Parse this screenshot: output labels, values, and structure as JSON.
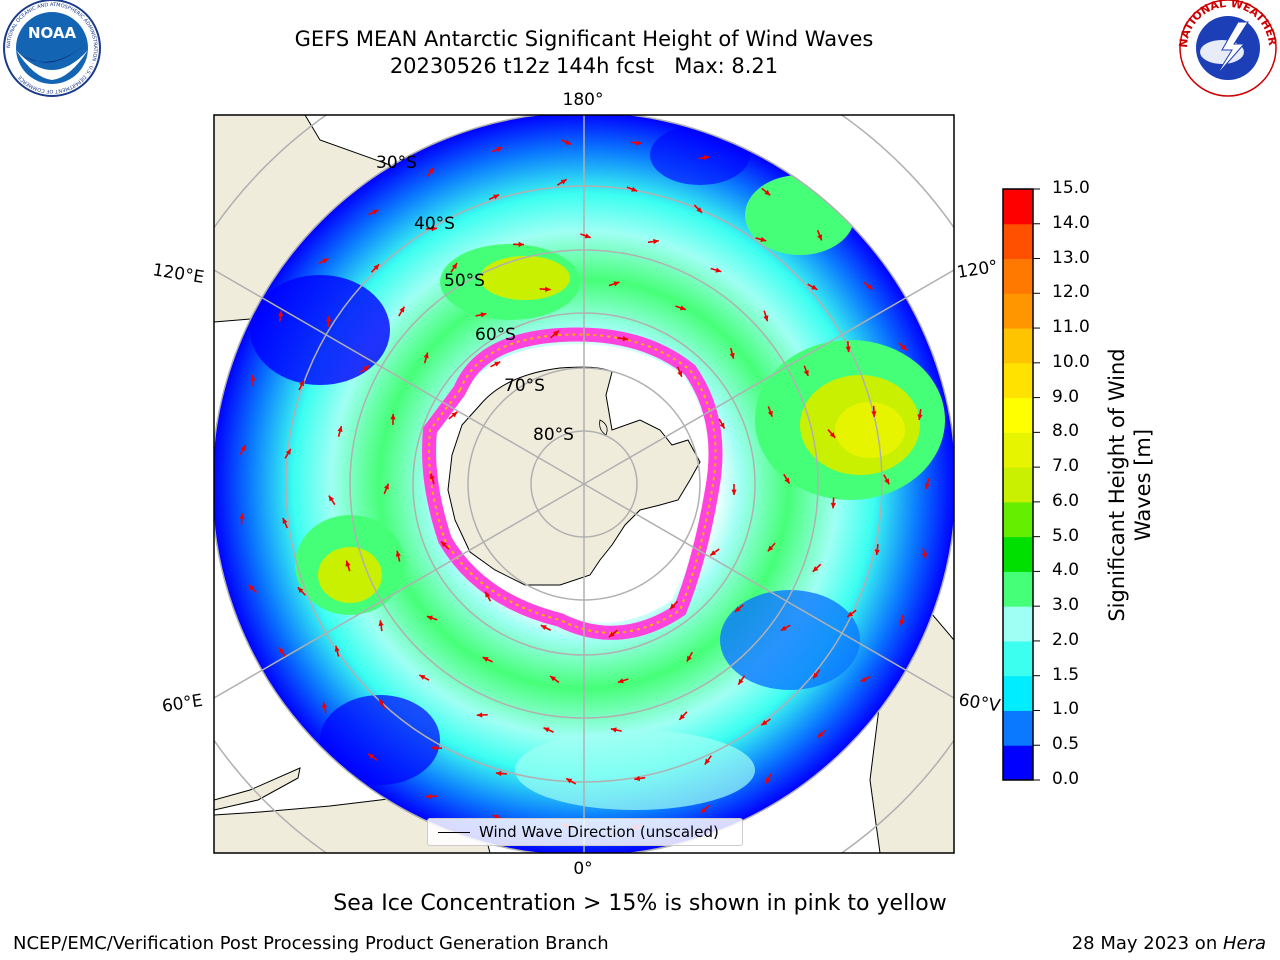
{
  "title": {
    "line1": "GEFS MEAN Antarctic Significant Height of Wind Waves",
    "line2": "20230526 t12z 144h fcst   Max: 8.21"
  },
  "logos": {
    "left": "NOAA",
    "left_ring": "NATIONAL OCEANIC AND ATMOSPHERIC ADMINISTRATION · U.S. DEPARTMENT OF COMMERCE",
    "right_ring": "NATIONAL WEATHER SERVICE"
  },
  "map": {
    "lon_labels": {
      "top": "180°",
      "bottom": "0°",
      "upper_left": "120°E",
      "lower_left": "60°E",
      "upper_right": "120°",
      "lower_right": "60°V"
    },
    "lat_labels": [
      "30°S",
      "40°S",
      "50°S",
      "60°S",
      "70°S",
      "80°S"
    ],
    "legend_label": "Wind Wave Direction (unscaled)",
    "colors": {
      "land": "#efecdc",
      "grid": "#b0b0b0",
      "arrow": "#ee0000",
      "sea_ice": "#ff44dd"
    }
  },
  "colorbar": {
    "label_line1": "Significant Height of Wind",
    "label_line2": "Waves [m]",
    "ticks": [
      "0.0",
      "0.5",
      "1.0",
      "1.5",
      "2.0",
      "3.0",
      "4.0",
      "5.0",
      "6.0",
      "7.0",
      "8.0",
      "9.0",
      "10.0",
      "11.0",
      "12.0",
      "13.0",
      "14.0",
      "15.0"
    ],
    "colors": [
      "#0000ff",
      "#0a78ff",
      "#00ecff",
      "#3cfff0",
      "#a0fff4",
      "#46ff78",
      "#00e000",
      "#66ee00",
      "#c8f000",
      "#e6f400",
      "#ffff00",
      "#ffe200",
      "#ffc400",
      "#ff9600",
      "#ff7800",
      "#ff5000",
      "#ff0000"
    ]
  },
  "caption": "Sea Ice Concentration > 15% is shown in pink to yellow",
  "footer": {
    "left": "NCEP/EMC/Verification Post Processing Product Generation Branch",
    "right_prefix": "28 May 2023 on ",
    "right_italic": "Hera"
  }
}
